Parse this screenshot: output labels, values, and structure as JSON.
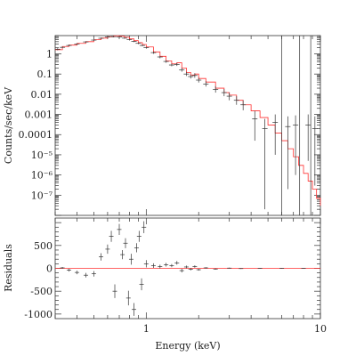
{
  "chart_data": [
    {
      "type": "line",
      "name": "spectrum",
      "xlabel": "Energy (keV)",
      "ylabel": "Counts/sec/keV",
      "xscale": "log",
      "yscale": "log",
      "xlim": [
        0.3,
        10
      ],
      "ylim": [
        1e-08,
        8
      ],
      "yticks": [
        {
          "value": 1,
          "label": "1"
        },
        {
          "value": 0.1,
          "label": "0.1"
        },
        {
          "value": 0.01,
          "label": "0.01"
        },
        {
          "value": 0.001,
          "label": "0.001"
        },
        {
          "value": 0.0001,
          "label": "0.0001"
        },
        {
          "value": 1e-05,
          "label": "10⁻⁵"
        },
        {
          "value": 1e-06,
          "label": "10⁻⁶"
        },
        {
          "value": 1e-07,
          "label": "10⁻⁷"
        }
      ],
      "model_color": "#ff3030",
      "data_color": "#333333",
      "model": {
        "x": [
          0.3,
          0.33,
          0.36,
          0.4,
          0.45,
          0.5,
          0.55,
          0.6,
          0.65,
          0.7,
          0.75,
          0.8,
          0.85,
          0.9,
          0.95,
          1.0,
          1.1,
          1.2,
          1.3,
          1.4,
          1.5,
          1.6,
          1.7,
          1.8,
          1.9,
          2.0,
          2.2,
          2.5,
          2.8,
          3.0,
          3.3,
          3.6,
          4.0,
          4.5,
          5.0,
          5.5,
          6.0,
          6.5,
          7.0,
          7.5,
          8.0,
          8.5,
          9.0,
          9.5,
          10.0
        ],
        "y": [
          1.6,
          2.3,
          2.7,
          3.3,
          4.0,
          5.0,
          6.0,
          7.0,
          7.8,
          7.5,
          6.6,
          5.5,
          4.5,
          3.6,
          2.9,
          2.2,
          1.25,
          0.75,
          0.45,
          0.32,
          0.36,
          0.2,
          0.12,
          0.09,
          0.1,
          0.06,
          0.04,
          0.02,
          0.012,
          0.009,
          0.005,
          0.003,
          0.0015,
          0.0007,
          0.0003,
          0.00012,
          5e-05,
          2e-05,
          8e-06,
          3e-06,
          1.2e-06,
          5e-07,
          2e-07,
          7e-08,
          3e-08
        ]
      },
      "data": [
        {
          "x": 0.31,
          "y": 1.7,
          "lo": 1.5,
          "hi": 1.9
        },
        {
          "x": 0.33,
          "y": 2.1,
          "lo": 1.9,
          "hi": 2.3
        },
        {
          "x": 0.36,
          "y": 2.6,
          "lo": 2.4,
          "hi": 2.9
        },
        {
          "x": 0.4,
          "y": 3.0,
          "lo": 2.8,
          "hi": 3.3
        },
        {
          "x": 0.45,
          "y": 3.9,
          "lo": 3.6,
          "hi": 4.2
        },
        {
          "x": 0.5,
          "y": 4.8,
          "lo": 4.4,
          "hi": 5.2
        },
        {
          "x": 0.55,
          "y": 5.9,
          "lo": 5.5,
          "hi": 6.4
        },
        {
          "x": 0.6,
          "y": 6.8,
          "lo": 6.3,
          "hi": 7.3
        },
        {
          "x": 0.65,
          "y": 7.1,
          "lo": 6.6,
          "hi": 7.7
        },
        {
          "x": 0.7,
          "y": 6.9,
          "lo": 6.4,
          "hi": 7.4
        },
        {
          "x": 0.75,
          "y": 6.0,
          "lo": 5.6,
          "hi": 6.5
        },
        {
          "x": 0.8,
          "y": 5.0,
          "lo": 4.6,
          "hi": 5.4
        },
        {
          "x": 0.85,
          "y": 4.1,
          "lo": 3.8,
          "hi": 4.5
        },
        {
          "x": 0.9,
          "y": 3.3,
          "lo": 3.0,
          "hi": 3.6
        },
        {
          "x": 0.95,
          "y": 2.6,
          "lo": 2.4,
          "hi": 2.9
        },
        {
          "x": 1.0,
          "y": 2.0,
          "lo": 1.8,
          "hi": 2.2
        },
        {
          "x": 1.1,
          "y": 1.15,
          "lo": 1.0,
          "hi": 1.3
        },
        {
          "x": 1.2,
          "y": 0.7,
          "lo": 0.6,
          "hi": 0.8
        },
        {
          "x": 1.3,
          "y": 0.42,
          "lo": 0.36,
          "hi": 0.48
        },
        {
          "x": 1.4,
          "y": 0.28,
          "lo": 0.24,
          "hi": 0.33
        },
        {
          "x": 1.5,
          "y": 0.3,
          "lo": 0.25,
          "hi": 0.36
        },
        {
          "x": 1.6,
          "y": 0.16,
          "lo": 0.13,
          "hi": 0.2
        },
        {
          "x": 1.7,
          "y": 0.1,
          "lo": 0.08,
          "hi": 0.13
        },
        {
          "x": 1.8,
          "y": 0.075,
          "lo": 0.06,
          "hi": 0.095
        },
        {
          "x": 1.9,
          "y": 0.085,
          "lo": 0.065,
          "hi": 0.11
        },
        {
          "x": 2.0,
          "y": 0.05,
          "lo": 0.038,
          "hi": 0.066
        },
        {
          "x": 2.2,
          "y": 0.032,
          "lo": 0.024,
          "hi": 0.044
        },
        {
          "x": 2.5,
          "y": 0.017,
          "lo": 0.012,
          "hi": 0.025
        },
        {
          "x": 2.8,
          "y": 0.012,
          "lo": 0.008,
          "hi": 0.018
        },
        {
          "x": 3.0,
          "y": 0.008,
          "lo": 0.005,
          "hi": 0.012
        },
        {
          "x": 3.3,
          "y": 0.005,
          "lo": 0.003,
          "hi": 0.008
        },
        {
          "x": 3.6,
          "y": 0.003,
          "lo": 0.0016,
          "hi": 0.005
        },
        {
          "x": 4.2,
          "y": 0.0006,
          "lo": 5e-05,
          "hi": 0.0015
        },
        {
          "x": 4.8,
          "y": 0.0002,
          "lo": 2e-08,
          "hi": 0.0006
        },
        {
          "x": 5.5,
          "y": 0.0004,
          "lo": 1e-05,
          "hi": 0.001
        },
        {
          "x": 6.5,
          "y": 0.00025,
          "lo": 2e-07,
          "hi": 0.0008
        },
        {
          "x": 7.2,
          "y": 0.0003,
          "lo": 1e-06,
          "hi": 0.0009
        },
        {
          "x": 8.5,
          "y": 0.0003,
          "lo": 5e-06,
          "hi": 0.001
        },
        {
          "x": 9.3,
          "y": 0.0002,
          "lo": 3e-07,
          "hi": 0.0008
        }
      ],
      "vertical_lines_x": [
        6.0,
        7.6,
        8.8
      ]
    },
    {
      "type": "scatter",
      "name": "residuals",
      "xlabel": "Energy (keV)",
      "ylabel": "Residuals",
      "xscale": "log",
      "xlim": [
        0.3,
        10
      ],
      "ylim": [
        -1100,
        1100
      ],
      "xticks": [
        {
          "value": 1,
          "label": "1"
        },
        {
          "value": 10,
          "label": "10"
        }
      ],
      "yticks": [
        {
          "value": 500,
          "label": "500"
        },
        {
          "value": 0,
          "label": "0"
        },
        {
          "value": -500,
          "label": "-500"
        },
        {
          "value": -1000,
          "label": "-1000"
        }
      ],
      "zero_line_color": "#ff3030",
      "points": [
        {
          "x": 0.33,
          "y": 10,
          "err": 20
        },
        {
          "x": 0.36,
          "y": -40,
          "err": 30
        },
        {
          "x": 0.4,
          "y": -90,
          "err": 40
        },
        {
          "x": 0.45,
          "y": -150,
          "err": 50
        },
        {
          "x": 0.5,
          "y": -120,
          "err": 60
        },
        {
          "x": 0.55,
          "y": 250,
          "err": 80
        },
        {
          "x": 0.6,
          "y": 420,
          "err": 100
        },
        {
          "x": 0.63,
          "y": 700,
          "err": 120
        },
        {
          "x": 0.66,
          "y": -500,
          "err": 150
        },
        {
          "x": 0.7,
          "y": 850,
          "err": 120
        },
        {
          "x": 0.73,
          "y": 300,
          "err": 100
        },
        {
          "x": 0.76,
          "y": 550,
          "err": 110
        },
        {
          "x": 0.79,
          "y": -650,
          "err": 160
        },
        {
          "x": 0.82,
          "y": 200,
          "err": 120
        },
        {
          "x": 0.85,
          "y": -900,
          "err": 140
        },
        {
          "x": 0.88,
          "y": 450,
          "err": 100
        },
        {
          "x": 0.91,
          "y": 700,
          "err": 120
        },
        {
          "x": 0.94,
          "y": -350,
          "err": 130
        },
        {
          "x": 0.97,
          "y": 900,
          "err": 130
        },
        {
          "x": 1.0,
          "y": 100,
          "err": 80
        },
        {
          "x": 1.1,
          "y": 60,
          "err": 50
        },
        {
          "x": 1.2,
          "y": 40,
          "err": 40
        },
        {
          "x": 1.3,
          "y": 80,
          "err": 40
        },
        {
          "x": 1.4,
          "y": 60,
          "err": 35
        },
        {
          "x": 1.5,
          "y": 120,
          "err": 40
        },
        {
          "x": 1.6,
          "y": -50,
          "err": 40
        },
        {
          "x": 1.7,
          "y": 30,
          "err": 30
        },
        {
          "x": 1.8,
          "y": -20,
          "err": 25
        },
        {
          "x": 1.9,
          "y": 40,
          "err": 25
        },
        {
          "x": 2.0,
          "y": -30,
          "err": 20
        },
        {
          "x": 2.2,
          "y": 10,
          "err": 15
        },
        {
          "x": 2.5,
          "y": -15,
          "err": 12
        },
        {
          "x": 3.0,
          "y": 5,
          "err": 10
        },
        {
          "x": 3.5,
          "y": -5,
          "err": 8
        },
        {
          "x": 4.5,
          "y": 0,
          "err": 8
        },
        {
          "x": 6.0,
          "y": 0,
          "err": 6
        },
        {
          "x": 8.0,
          "y": 0,
          "err": 6
        }
      ]
    }
  ]
}
